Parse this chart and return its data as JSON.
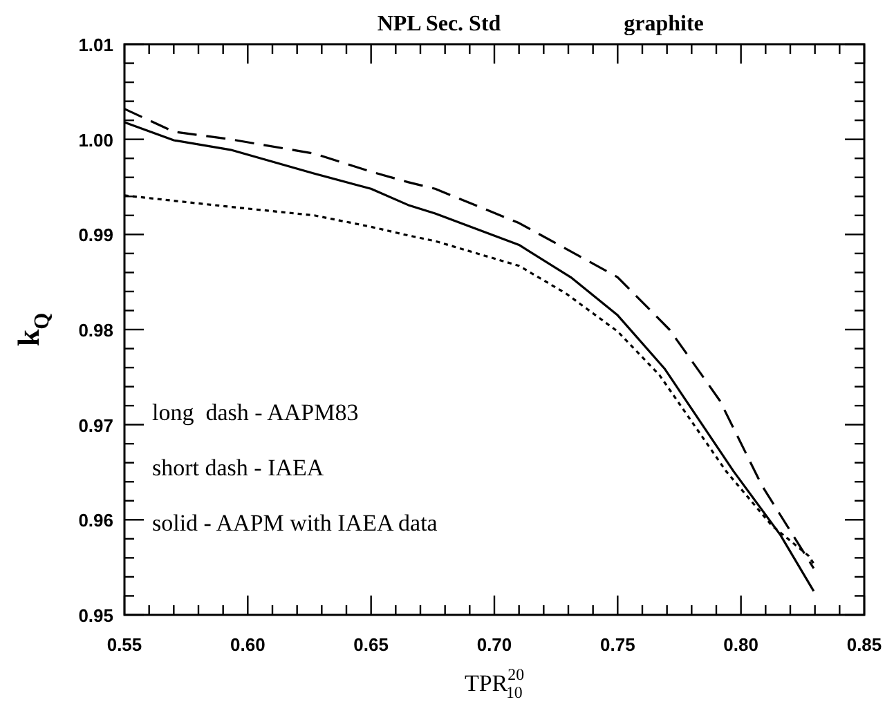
{
  "chart_data": {
    "type": "line",
    "title": "NPL Sec. Std",
    "subtitle": "graphite",
    "xlabel": "TPR$^{20}$$_{10}$",
    "ylabel": "k$_{Q}$",
    "xlim": [
      0.55,
      0.85
    ],
    "ylim": [
      0.95,
      1.01
    ],
    "xticks": [
      "0.55",
      {
        "value": 0.56,
        "label": null
      },
      {
        "value": 0.57,
        "label": null
      },
      {
        "value": 0.58,
        "label": null
      },
      {
        "value": 0.59,
        "label": null
      },
      {
        "value": 0.6,
        "label": "0.60"
      },
      {
        "value": 0.61,
        "label": null
      },
      {
        "value": 0.62,
        "label": null
      },
      {
        "value": 0.63,
        "label": null
      },
      {
        "value": 0.64,
        "label": null
      },
      0.65,
      {
        "value": 0.66,
        "label": null
      },
      {
        "value": 0.67,
        "label": null
      },
      {
        "value": 0.68,
        "label": null
      },
      {
        "value": 0.69,
        "label": null
      },
      {
        "value": 0.7,
        "label": "0.70"
      },
      {
        "value": 0.71,
        "label": null
      },
      {
        "value": 0.72,
        "label": null
      },
      {
        "value": 0.73,
        "label": null
      },
      {
        "value": 0.74,
        "label": null
      },
      0.75,
      {
        "value": 0.76,
        "label": null
      },
      {
        "value": 0.77,
        "label": null
      },
      {
        "value": 0.78,
        "label": null
      },
      {
        "value": 0.79,
        "label": null
      },
      {
        "value": 0.8,
        "label": "0.80"
      },
      {
        "value": 0.81,
        "label": null
      },
      {
        "value": 0.82,
        "label": null
      },
      {
        "value": 0.83,
        "label": null
      },
      {
        "value": 0.84,
        "label": null
      },
      0.85
    ],
    "yticks": [
      0.95,
      {
        "value": 0.952,
        "label": null
      },
      {
        "value": 0.954,
        "label": null
      },
      {
        "value": 0.956,
        "label": null
      },
      {
        "value": 0.958,
        "label": null
      },
      {
        "value": 0.96,
        "label": "0.96"
      },
      {
        "value": 0.962,
        "label": null
      },
      {
        "value": 0.964,
        "label": null
      },
      {
        "value": 0.966,
        "label": null
      },
      {
        "value": 0.968,
        "label": null
      },
      0.97,
      {
        "value": 0.972,
        "label": null
      },
      {
        "value": 0.974,
        "label": null
      },
      {
        "value": 0.976,
        "label": null
      },
      {
        "value": 0.978,
        "label": null
      },
      0.98,
      {
        "value": 0.982,
        "label": null
      },
      {
        "value": 0.984,
        "label": null
      },
      {
        "value": 0.986,
        "label": null
      },
      {
        "value": 0.988,
        "label": null
      },
      0.99,
      {
        "value": 0.992,
        "label": null
      },
      {
        "value": 0.994,
        "label": null
      },
      {
        "value": 0.996,
        "label": null
      },
      {
        "value": 0.998,
        "label": null
      },
      {
        "value": 1.0,
        "label": "1.00"
      },
      {
        "value": 1.002,
        "label": null
      },
      {
        "value": 1.004,
        "label": null
      },
      {
        "value": 1.006,
        "label": null
      },
      {
        "value": 1.008,
        "label": null
      },
      1.01
    ],
    "grid": false,
    "marker": "none",
    "series": [
      {
        "color": "#000000",
        "line_style": "longdash",
        "x": [
          0.55,
          0.57,
          0.593,
          0.627,
          0.65,
          0.665,
          0.676,
          0.71,
          0.75,
          0.771,
          0.782,
          0.7915,
          0.8085,
          0.8295
        ],
        "values": [
          1.0032,
          1.0008,
          1.0,
          0.9985,
          0.9966,
          0.9955,
          0.9948,
          0.9912,
          0.9855,
          0.98,
          0.976,
          0.9725,
          0.9636,
          0.9549
        ]
      },
      {
        "color": "#000000",
        "line_style": "dotted",
        "x": [
          0.55,
          0.593,
          0.627,
          0.65,
          0.665,
          0.676,
          0.71,
          0.729,
          0.75,
          0.767,
          0.794,
          0.8125,
          0.8275,
          0.8295
        ],
        "values": [
          0.9941,
          0.9929,
          0.992,
          0.9908,
          0.9899,
          0.9893,
          0.9867,
          0.9838,
          0.9798,
          0.9752,
          0.9651,
          0.9594,
          0.9562,
          0.9554
        ]
      },
      {
        "color": "#000000",
        "line_style": "solid",
        "x": [
          0.55,
          0.57,
          0.593,
          0.627,
          0.65,
          0.665,
          0.676,
          0.71,
          0.731,
          0.75,
          0.769,
          0.797,
          0.816,
          0.8295
        ],
        "values": [
          1.0018,
          0.9999,
          0.9989,
          0.9964,
          0.9948,
          0.9931,
          0.9922,
          0.9889,
          0.9855,
          0.9815,
          0.9759,
          0.9651,
          0.9584,
          0.9525
        ]
      }
    ],
    "annotations": [
      "long  dash - AAPM83",
      "short dash - IAEA",
      "solid - AAPM with IAEA data"
    ]
  }
}
